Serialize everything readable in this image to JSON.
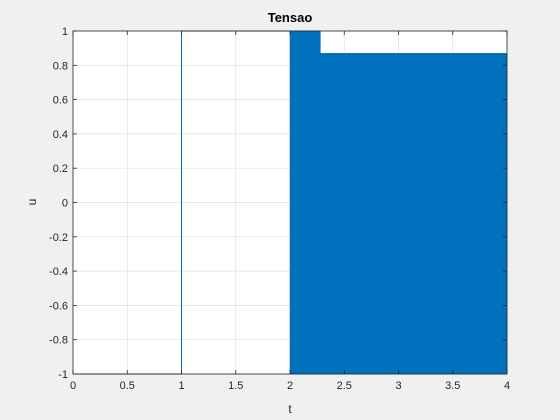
{
  "chart_data": {
    "type": "line",
    "title": "Tensao",
    "xlabel": "t",
    "ylabel": "u",
    "xlim": [
      0,
      4
    ],
    "ylim": [
      -1,
      1
    ],
    "grid": true,
    "xticks": [
      0,
      0.5,
      1,
      1.5,
      2,
      2.5,
      3,
      3.5,
      4
    ],
    "xtick_labels": [
      "0",
      "0.5",
      "1",
      "1.5",
      "2",
      "2.5",
      "3",
      "3.5",
      "4"
    ],
    "yticks": [
      -1,
      -0.8,
      -0.6,
      -0.4,
      -0.2,
      0,
      0.2,
      0.4,
      0.6,
      0.8,
      1
    ],
    "ytick_labels": [
      "-1",
      "-0.8",
      "-0.6",
      "-0.4",
      "-0.2",
      "0",
      "0.2",
      "0.4",
      "0.6",
      "0.8",
      "1"
    ],
    "series": [
      {
        "color": "#0072bd",
        "x": [
          0,
          1,
          1,
          2
        ],
        "y": [
          -1,
          -1,
          1,
          1
        ],
        "oscillation_band": {
          "x": [
            2,
            2.28,
            2.28,
            4
          ],
          "y_min": [
            -1,
            -1,
            -1,
            -1
          ],
          "y_max": [
            1,
            1,
            0.87,
            0.87
          ]
        }
      }
    ]
  }
}
